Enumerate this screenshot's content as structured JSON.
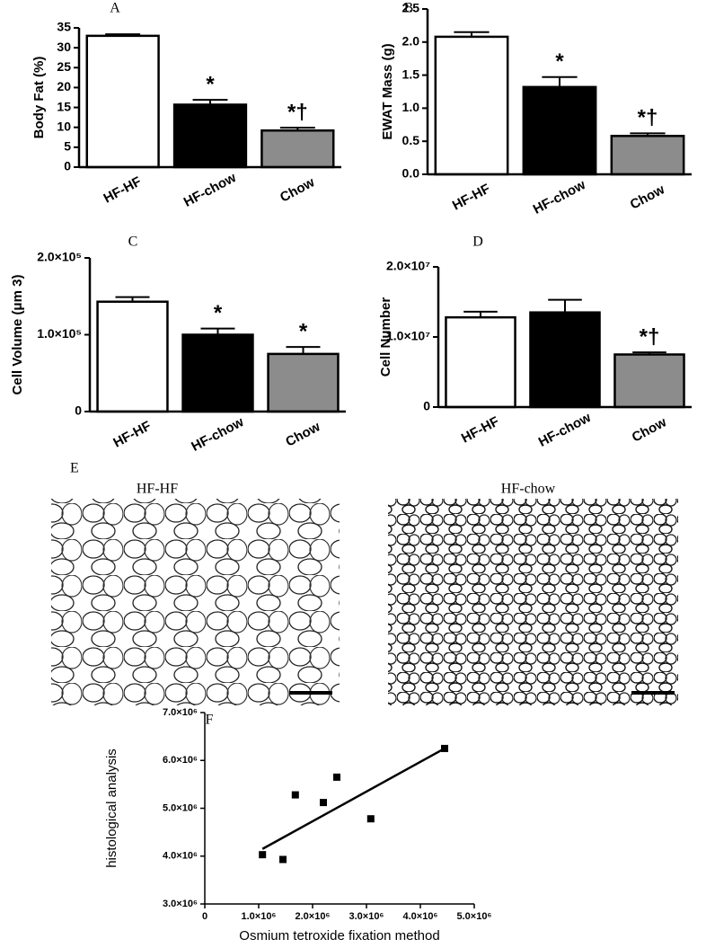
{
  "chart_data": [
    {
      "type": "bar",
      "panel_label": "A",
      "y_label": "Body Fat (%)",
      "categories": [
        "HF-HF",
        "HF-chow",
        "Chow"
      ],
      "values": [
        33,
        15.7,
        9.2
      ],
      "errors": [
        0.4,
        1.2,
        0.7
      ],
      "colors": [
        "#ffffff",
        "#000000",
        "#8c8c8c"
      ],
      "significance": [
        null,
        "*",
        "*†"
      ],
      "ylim": [
        0,
        35
      ],
      "yticks": [
        0,
        5,
        10,
        15,
        20,
        25,
        30,
        35
      ]
    },
    {
      "type": "bar",
      "panel_label": "B",
      "y_label": "EWAT Mass (g)",
      "categories": [
        "HF-HF",
        "HF-chow",
        "Chow"
      ],
      "values": [
        2.08,
        1.32,
        0.58
      ],
      "errors": [
        0.07,
        0.15,
        0.04
      ],
      "colors": [
        "#ffffff",
        "#000000",
        "#8c8c8c"
      ],
      "significance": [
        null,
        "*",
        "*†"
      ],
      "ylim": [
        0,
        2.5
      ],
      "yticks": [
        {
          "value": 0,
          "label": "0.0"
        },
        0.5,
        {
          "value": 1,
          "label": "1.0"
        },
        1.5,
        {
          "value": 2,
          "label": "2.0"
        },
        2.5
      ]
    },
    {
      "type": "bar",
      "panel_label": "C",
      "y_label": "Cell Volume (μm 3)",
      "categories": [
        "HF-HF",
        "HF-chow",
        "Chow"
      ],
      "values": [
        143000,
        100000,
        75000
      ],
      "errors": [
        6000,
        8000,
        9000
      ],
      "colors": [
        "#ffffff",
        "#000000",
        "#8c8c8c"
      ],
      "significance": [
        null,
        "*",
        "*"
      ],
      "ylim": [
        0,
        200000
      ],
      "yticks": [
        0,
        {
          "value": 100000,
          "label": "1.0×10⁵"
        },
        {
          "value": 200000,
          "label": "2.0×10⁵"
        }
      ]
    },
    {
      "type": "bar",
      "panel_label": "D",
      "y_label": "Cell Number",
      "categories": [
        "HF-HF",
        "HF-chow",
        "Chow"
      ],
      "values": [
        12800000,
        13500000,
        7500000
      ],
      "errors": [
        800000,
        1800000,
        300000
      ],
      "colors": [
        "#ffffff",
        "#000000",
        "#8c8c8c"
      ],
      "significance": [
        null,
        null,
        "*†"
      ],
      "ylim": [
        0,
        20000000
      ],
      "yticks": [
        0,
        {
          "value": 10000000,
          "label": "1.0×10⁷"
        },
        {
          "value": 20000000,
          "label": "2.0×10⁷"
        }
      ]
    },
    {
      "type": "scatter",
      "panel_label": "F",
      "x_label": "Osmium tetroxide fixation method",
      "y_label": "histological analysis",
      "x": [
        1070000,
        1450000,
        1680000,
        2200000,
        2450000,
        3080000,
        4450000
      ],
      "values": [
        4030000,
        3930000,
        5280000,
        5120000,
        5650000,
        4780000,
        6250000
      ],
      "color": "#000000",
      "fit": {
        "x": [
          1070000,
          4450000
        ],
        "y": [
          4150000,
          6250000
        ]
      },
      "xlim": [
        0,
        5000000
      ],
      "xticks": [
        0,
        {
          "value": 1000000,
          "label": "1.0×10⁶"
        },
        {
          "value": 2000000,
          "label": "2.0×10⁶"
        },
        {
          "value": 3000000,
          "label": "3.0×10⁶"
        },
        {
          "value": 4000000,
          "label": "4.0×10⁶"
        },
        {
          "value": 5000000,
          "label": "5.0×10⁶"
        }
      ],
      "ylim": [
        3000000,
        7000000
      ],
      "yticks": [
        {
          "value": 3000000,
          "label": "3.0×10⁶"
        },
        {
          "value": 4000000,
          "label": "4.0×10⁶"
        },
        {
          "value": 5000000,
          "label": "5.0×10⁶"
        },
        {
          "value": 6000000,
          "label": "6.0×10⁶"
        },
        {
          "value": 7000000,
          "label": "7.0×10⁶"
        }
      ]
    }
  ],
  "panel_e": {
    "panel_label": "E",
    "images": [
      "HF-HF",
      "HF-chow"
    ]
  }
}
